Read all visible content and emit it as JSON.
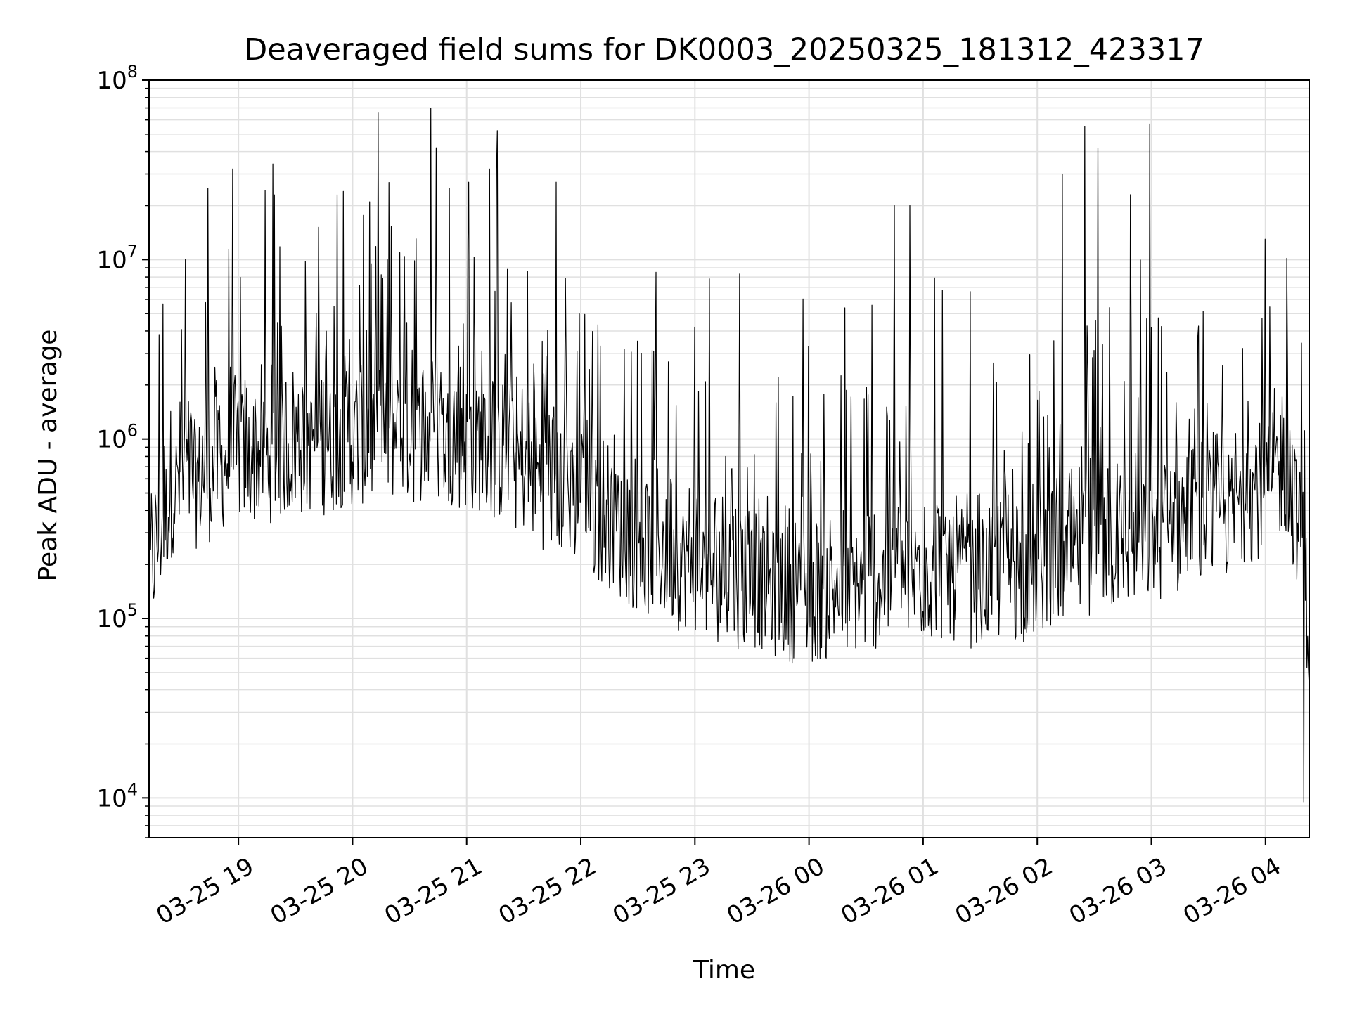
{
  "chart_data": {
    "type": "line",
    "title": "Deaveraged field sums for DK0003_20250325_181312_423317",
    "xlabel": "Time",
    "ylabel": "Peak ADU - average",
    "yscale": "log",
    "ylim": [
      6000,
      100000000
    ],
    "xlim": [
      "2025-03-25 18:13",
      "2025-03-26 04:23"
    ],
    "grid": true,
    "line_color": "#000000",
    "grid_color": "#e0e0e0",
    "x_ticks": [
      "03-25 19",
      "03-25 20",
      "03-25 21",
      "03-25 22",
      "03-25 23",
      "03-26 00",
      "03-26 01",
      "03-26 02",
      "03-26 03",
      "03-26 04"
    ],
    "y_ticks": [
      {
        "base": "10",
        "exp": "4",
        "value": 10000
      },
      {
        "base": "10",
        "exp": "5",
        "value": 100000
      },
      {
        "base": "10",
        "exp": "6",
        "value": 1000000
      },
      {
        "base": "10",
        "exp": "7",
        "value": 10000000
      },
      {
        "base": "10",
        "exp": "8",
        "value": 100000000
      }
    ],
    "series": [
      {
        "time": [
          "2025-03-25 18:13",
          "2025-03-25 18:25",
          "2025-03-25 18:40",
          "2025-03-25 19:00",
          "2025-03-25 19:30",
          "2025-03-25 20:00",
          "2025-03-25 20:30",
          "2025-03-25 21:00",
          "2025-03-25 21:30",
          "2025-03-25 22:00",
          "2025-03-25 22:30",
          "2025-03-25 23:00",
          "2025-03-25 23:30",
          "2025-03-26 00:00",
          "2025-03-26 00:30",
          "2025-03-26 01:00",
          "2025-03-26 01:30",
          "2025-03-26 02:00",
          "2025-03-26 02:30",
          "2025-03-26 03:00",
          "2025-03-26 03:30",
          "2025-03-26 04:00",
          "2025-03-26 04:10",
          "2025-03-26 04:20",
          "2025-03-26 04:23"
        ],
        "values": [
          200000,
          600000,
          700000,
          900000,
          1000000,
          1100000,
          1200000,
          1100000,
          800000,
          500000,
          300000,
          220000,
          180000,
          150000,
          170000,
          200000,
          190000,
          210000,
          280000,
          320000,
          380000,
          600000,
          800000,
          300000,
          80000
        ]
      }
    ],
    "spikes": [
      {
        "time": "2025-03-25 18:44",
        "value": 25000000
      },
      {
        "time": "2025-03-25 18:57",
        "value": 32000000
      },
      {
        "time": "2025-03-25 19:52",
        "value": 23000000
      },
      {
        "time": "2025-03-25 19:55",
        "value": 24000000
      },
      {
        "time": "2025-03-25 20:09",
        "value": 21000000
      },
      {
        "time": "2025-03-25 20:41",
        "value": 70000000
      },
      {
        "time": "2025-03-25 20:44",
        "value": 42000000
      },
      {
        "time": "2025-03-25 20:51",
        "value": 25000000
      },
      {
        "time": "2025-03-25 21:01",
        "value": 27000000
      },
      {
        "time": "2025-03-25 21:12",
        "value": 32000000
      },
      {
        "time": "2025-03-25 21:47",
        "value": 27000000
      },
      {
        "time": "2025-03-25 22:32",
        "value": 3000000
      },
      {
        "time": "2025-03-26 00:45",
        "value": 20000000
      },
      {
        "time": "2025-03-26 00:53",
        "value": 20000000
      },
      {
        "time": "2025-03-26 02:13",
        "value": 30000000
      },
      {
        "time": "2025-03-26 02:25",
        "value": 55000000
      },
      {
        "time": "2025-03-26 02:32",
        "value": 42000000
      },
      {
        "time": "2025-03-26 02:49",
        "value": 23000000
      },
      {
        "time": "2025-03-26 02:59",
        "value": 57000000
      },
      {
        "time": "2025-03-26 04:00",
        "value": 13000000
      },
      {
        "time": "2025-03-26 04:20",
        "value": 9500
      }
    ]
  }
}
